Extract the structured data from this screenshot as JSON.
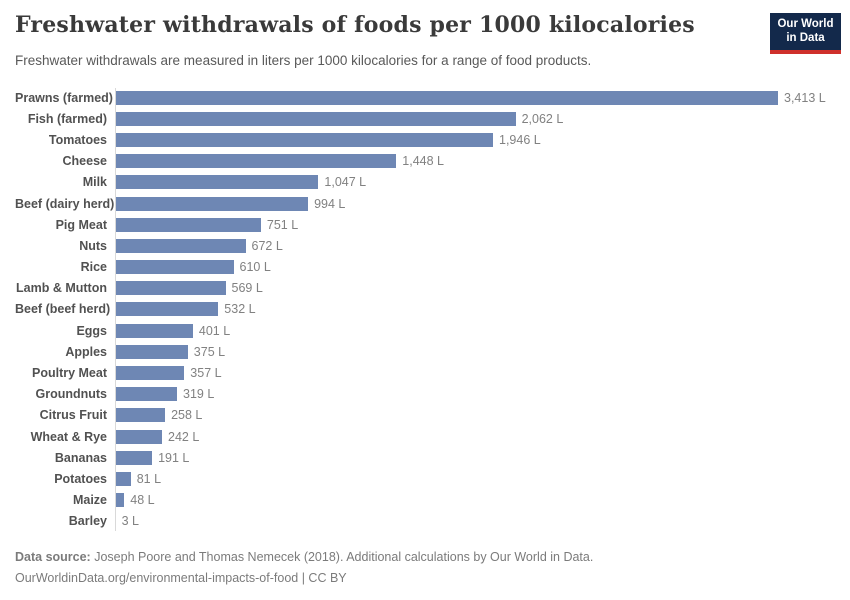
{
  "header": {
    "title": "Freshwater withdrawals of foods per 1000 kilocalories",
    "subtitle": "Freshwater withdrawals are measured in liters per 1000 kilocalories for a range of food products.",
    "logo": {
      "line1": "Our World",
      "line2": "in Data",
      "bg_color": "#13294b",
      "accent_color": "#cf302b"
    }
  },
  "chart_data": {
    "type": "bar",
    "orientation": "horizontal",
    "title": "Freshwater withdrawals of foods per 1000 kilocalories",
    "unit": "liters per 1000 kilocalories",
    "xlim": [
      0,
      3413
    ],
    "grid": false,
    "legend": false,
    "bar_color": "#6e87b4",
    "categories": [
      "Prawns (farmed)",
      "Fish (farmed)",
      "Tomatoes",
      "Cheese",
      "Milk",
      "Beef (dairy herd)",
      "Pig Meat",
      "Nuts",
      "Rice",
      "Lamb & Mutton",
      "Beef (beef herd)",
      "Eggs",
      "Apples",
      "Poultry Meat",
      "Groundnuts",
      "Citrus Fruit",
      "Wheat & Rye",
      "Bananas",
      "Potatoes",
      "Maize",
      "Barley"
    ],
    "values": [
      3413,
      2062,
      1946,
      1448,
      1047,
      994,
      751,
      672,
      610,
      569,
      532,
      401,
      375,
      357,
      319,
      258,
      242,
      191,
      81,
      48,
      3
    ],
    "value_labels": [
      "3,413 L",
      "2,062 L",
      "1,946 L",
      "1,448 L",
      "1,047 L",
      "994 L",
      "751 L",
      "672 L",
      "610 L",
      "569 L",
      "532 L",
      "401 L",
      "375 L",
      "357 L",
      "319 L",
      "258 L",
      "242 L",
      "191 L",
      "81 L",
      "48 L",
      "3 L"
    ]
  },
  "footer": {
    "source_label": "Data source:",
    "source_text": " Joseph Poore and Thomas Nemecek (2018). Additional calculations by Our World in Data.",
    "citation": "OurWorldinData.org/environmental-impacts-of-food | CC BY"
  }
}
